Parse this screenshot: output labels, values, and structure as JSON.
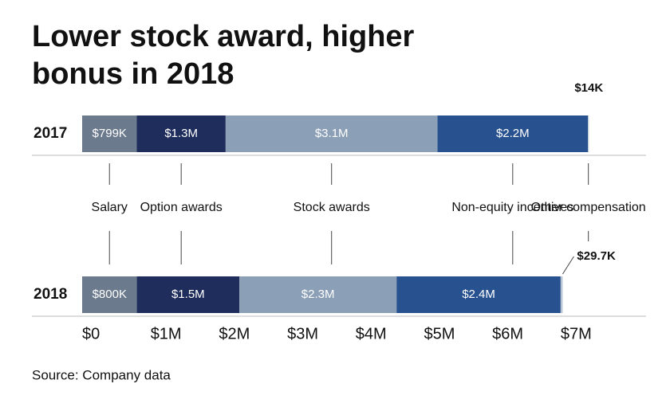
{
  "chart_data": {
    "type": "stacked-bar-horizontal",
    "title": "Lower stock award, higher bonus in 2018",
    "source": "Source: Company data",
    "categories": [
      "2017",
      "2018"
    ],
    "series": [
      {
        "name": "Salary",
        "color": "#6c7a8e",
        "values": [
          799000,
          800000
        ],
        "value_labels": [
          "$799K",
          "$800K"
        ]
      },
      {
        "name": "Option awards",
        "color": "#1f2d5c",
        "values": [
          1300000,
          1500000
        ],
        "value_labels": [
          "$1.3M",
          "$1.5M"
        ]
      },
      {
        "name": "Stock awards",
        "color": "#8b9fb6",
        "values": [
          3100000,
          2300000
        ],
        "value_labels": [
          "$3.1M",
          "$2.3M"
        ]
      },
      {
        "name": "Non-equity incentives",
        "color": "#28518f",
        "values": [
          2200000,
          2400000
        ],
        "value_labels": [
          "$2.2M",
          "$2.4M"
        ]
      },
      {
        "name": "Other compensation",
        "color": "#b9c5d4",
        "values": [
          14000,
          29700
        ],
        "value_labels": [
          "$14K",
          "$29.7K"
        ]
      }
    ],
    "xlim": [
      0,
      8250000
    ],
    "xticks": [
      {
        "value": 0,
        "label": "$0"
      },
      {
        "value": 1000000,
        "label": "$1M"
      },
      {
        "value": 2000000,
        "label": "$2M"
      },
      {
        "value": 3000000,
        "label": "$3M"
      },
      {
        "value": 4000000,
        "label": "$4M"
      },
      {
        "value": 5000000,
        "label": "$5M"
      },
      {
        "value": 6000000,
        "label": "$6M"
      },
      {
        "value": 7000000,
        "label": "$7M"
      }
    ]
  }
}
